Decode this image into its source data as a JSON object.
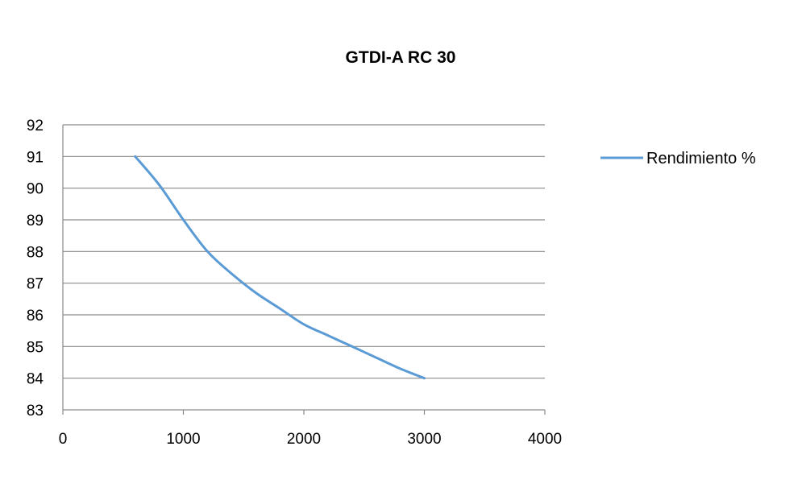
{
  "chart_data": {
    "type": "line",
    "title": "GTDI-A RC 30",
    "xlabel": "",
    "ylabel": "",
    "xlim": [
      0,
      4000
    ],
    "ylim": [
      83,
      92
    ],
    "x_ticks": [
      0,
      1000,
      2000,
      3000,
      4000
    ],
    "y_ticks": [
      83,
      84,
      85,
      86,
      87,
      88,
      89,
      90,
      91,
      92
    ],
    "grid": true,
    "legend_position": "right",
    "series": [
      {
        "name": "Rendimiento %",
        "color": "#5b9bd5",
        "x": [
          600,
          800,
          1000,
          1200,
          1400,
          1600,
          1800,
          2000,
          2200,
          2400,
          2600,
          2800,
          3000
        ],
        "y": [
          91,
          90.1,
          89,
          88,
          87.3,
          86.7,
          86.2,
          85.7,
          85.35,
          85,
          84.65,
          84.3,
          84
        ]
      }
    ]
  }
}
